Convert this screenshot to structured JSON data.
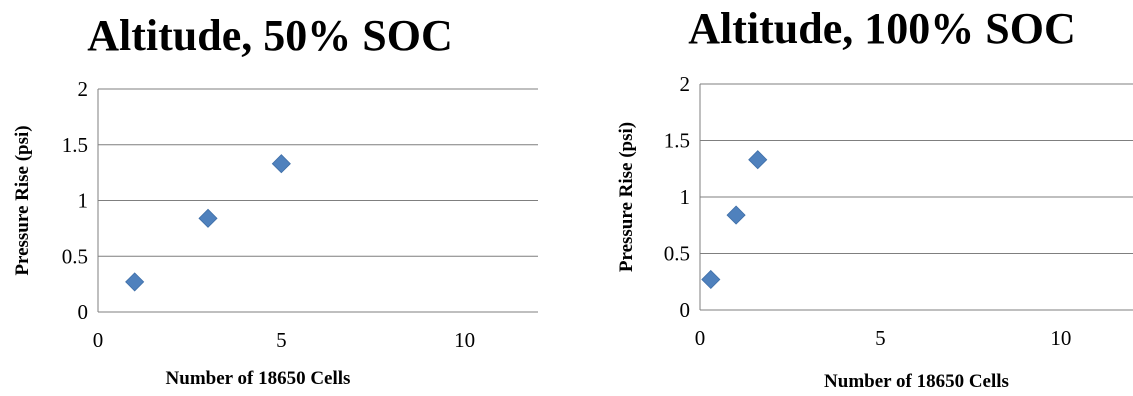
{
  "chart_data": [
    {
      "type": "scatter",
      "title": "Altitude, 50% SOC",
      "xlabel": "Number of 18650 Cells",
      "ylabel": "Pressure Rise (psi)",
      "xlim": [
        0,
        12
      ],
      "ylim": [
        0,
        2
      ],
      "xticks": [
        "0",
        "5",
        "10"
      ],
      "yticks": [
        "0",
        "0.5",
        "1",
        "1.5",
        "2"
      ],
      "grid": true,
      "marker_color": "#4f81bd",
      "x": [
        1,
        3,
        5
      ],
      "y": [
        0.27,
        0.84,
        1.33
      ]
    },
    {
      "type": "scatter",
      "title": "Altitude, 100% SOC",
      "xlabel": "Number of 18650 Cells",
      "ylabel": "Pressure Rise (psi)",
      "xlim": [
        0,
        12
      ],
      "ylim": [
        0,
        2
      ],
      "xticks": [
        "0",
        "5",
        "10"
      ],
      "yticks": [
        "0",
        "0.5",
        "1",
        "1.5",
        "2"
      ],
      "grid": true,
      "marker_color": "#4f81bd",
      "x": [
        0.3,
        1,
        1.6
      ],
      "y": [
        0.27,
        0.84,
        1.33
      ]
    }
  ]
}
